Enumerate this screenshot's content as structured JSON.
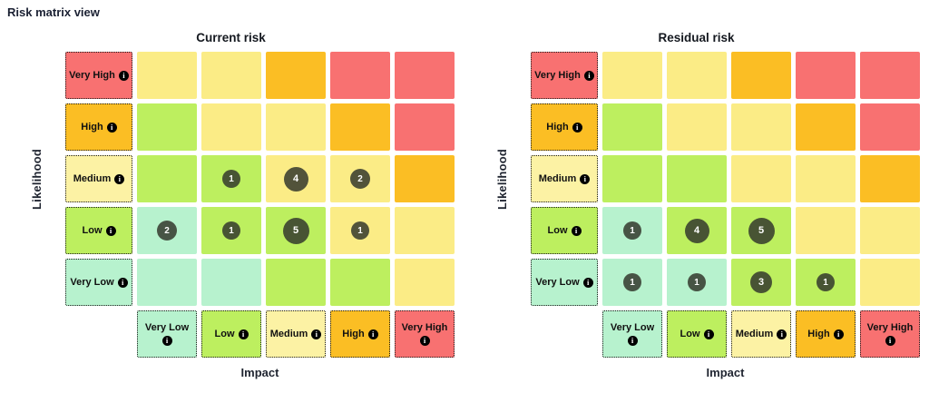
{
  "page_title": "Risk matrix view",
  "axes": {
    "x": "Impact",
    "y": "Likelihood"
  },
  "likelihood": [
    "Very High",
    "High",
    "Medium",
    "Low",
    "Very Low"
  ],
  "impact": [
    "Very Low",
    "Low",
    "Medium",
    "High",
    "Very High"
  ],
  "impact_two_line": [
    true,
    false,
    false,
    false,
    true
  ],
  "info_icon_glyph": "i",
  "colors": {
    "red": "#F87171",
    "orange": "#FBBE24",
    "yellow": "#FBEC86",
    "pale_yellow": "#FCF2A4",
    "green": "#BDEF5F",
    "teal": "#B7F2CE",
    "badge_bg": "rgba(52,56,45,0.85)",
    "badge_text": "#FFFFFF",
    "title_text": "#14181f"
  },
  "row_header_colors": [
    "red",
    "orange",
    "pale_yellow",
    "green",
    "teal"
  ],
  "col_header_colors": [
    "teal",
    "green",
    "pale_yellow",
    "orange",
    "red"
  ],
  "cell_colors": [
    [
      "yellow",
      "yellow",
      "orange",
      "red",
      "red"
    ],
    [
      "green",
      "yellow",
      "yellow",
      "orange",
      "red"
    ],
    [
      "green",
      "green",
      "yellow",
      "yellow",
      "orange"
    ],
    [
      "teal",
      "green",
      "green",
      "yellow",
      "yellow"
    ],
    [
      "teal",
      "teal",
      "green",
      "green",
      "yellow"
    ]
  ],
  "badge_sizes": {
    "1": 20,
    "2": 22,
    "3": 24,
    "4": 27,
    "5": 29
  },
  "chart_data": [
    {
      "type": "heatmap",
      "title": "Current risk",
      "xlabel": "Impact",
      "ylabel": "Likelihood",
      "x_categories": [
        "Very Low",
        "Low",
        "Medium",
        "High",
        "Very High"
      ],
      "y_categories": [
        "Very High",
        "High",
        "Medium",
        "Low",
        "Very Low"
      ],
      "counts": [
        [
          null,
          null,
          null,
          null,
          null
        ],
        [
          null,
          null,
          null,
          null,
          null
        ],
        [
          null,
          1,
          4,
          2,
          null
        ],
        [
          2,
          1,
          5,
          1,
          null
        ],
        [
          null,
          null,
          null,
          null,
          null
        ]
      ]
    },
    {
      "type": "heatmap",
      "title": "Residual risk",
      "xlabel": "Impact",
      "ylabel": "Likelihood",
      "x_categories": [
        "Very Low",
        "Low",
        "Medium",
        "High",
        "Very High"
      ],
      "y_categories": [
        "Very High",
        "High",
        "Medium",
        "Low",
        "Very Low"
      ],
      "counts": [
        [
          null,
          null,
          null,
          null,
          null
        ],
        [
          null,
          null,
          null,
          null,
          null
        ],
        [
          null,
          null,
          null,
          null,
          null
        ],
        [
          1,
          4,
          5,
          null,
          null
        ],
        [
          1,
          1,
          3,
          1,
          null
        ]
      ]
    }
  ]
}
